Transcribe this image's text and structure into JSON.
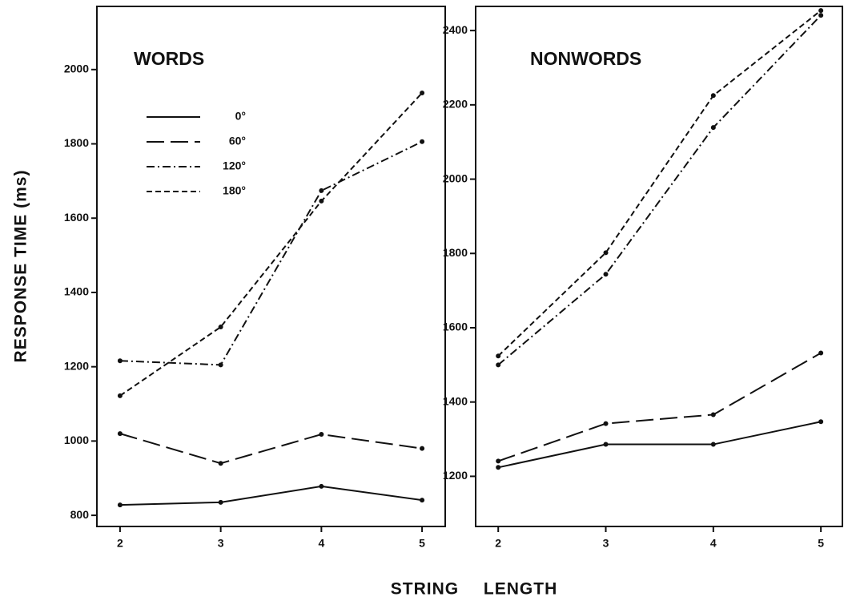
{
  "chart_data": [
    {
      "type": "line",
      "title": "WORDS",
      "ylabel": "RESPONSE TIME (ms)",
      "xlabel": "STRING LENGTH",
      "x": [
        2,
        3,
        4,
        5
      ],
      "xlim": [
        1.77,
        5.23
      ],
      "xticks": [
        2,
        3,
        4,
        5
      ],
      "ylim": [
        770,
        2170
      ],
      "yticks": [
        800,
        1000,
        1200,
        1400,
        1600,
        1800,
        2000
      ],
      "legend": true,
      "series": [
        {
          "name": "0°",
          "color": "#111111",
          "line_style": "solid",
          "values": [
            828,
            835,
            878,
            841
          ]
        },
        {
          "name": "60°",
          "color": "#111111",
          "line_style": "long-dash",
          "values": [
            1020,
            940,
            1018,
            980
          ]
        },
        {
          "name": "120°",
          "color": "#111111",
          "line_style": "dash-dot",
          "values": [
            1216,
            1205,
            1674,
            1806
          ]
        },
        {
          "name": "180°",
          "color": "#111111",
          "line_style": "short-dash",
          "values": [
            1122,
            1307,
            1646,
            1937
          ]
        }
      ]
    },
    {
      "type": "line",
      "title": "NONWORDS",
      "x": [
        2,
        3,
        4,
        5
      ],
      "xlim": [
        1.79,
        5.2
      ],
      "xticks": [
        2,
        3,
        4,
        5
      ],
      "ylim": [
        1065,
        2465
      ],
      "yticks": [
        1200,
        1400,
        1600,
        1800,
        2000,
        2200,
        2400
      ],
      "legend": false,
      "series": [
        {
          "name": "0°",
          "color": "#111111",
          "line_style": "solid",
          "values": [
            1224,
            1286,
            1286,
            1347
          ]
        },
        {
          "name": "60°",
          "color": "#111111",
          "line_style": "long-dash",
          "values": [
            1241,
            1342,
            1366,
            1532
          ]
        },
        {
          "name": "120°",
          "color": "#111111",
          "line_style": "dash-dot",
          "values": [
            1500,
            1744,
            2139,
            2441
          ]
        },
        {
          "name": "180°",
          "color": "#111111",
          "line_style": "short-dash",
          "values": [
            1524,
            1802,
            2225,
            2454
          ]
        }
      ]
    }
  ]
}
